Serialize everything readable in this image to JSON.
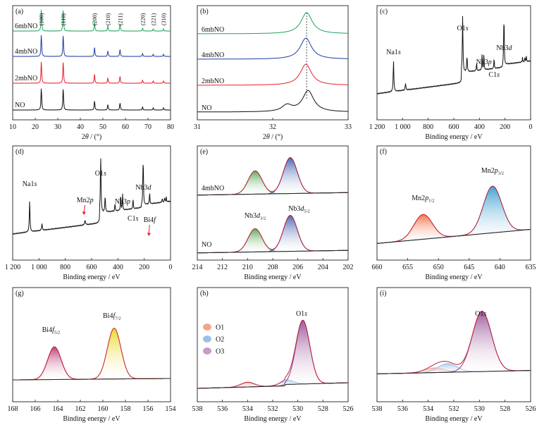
{
  "figure": {
    "panels": [
      {
        "id": "a",
        "panel_label": "(a)",
        "type": "line",
        "x_ticks": [
          "10",
          "20",
          "30",
          "40",
          "50",
          "60",
          "70",
          "80"
        ],
        "xlim": [
          10,
          80
        ],
        "xlabel": "2θ / (°)",
        "peak_labels": [
          {
            "text": "(100)",
            "x": 22.7
          },
          {
            "text": "(110)",
            "x": 32.4
          },
          {
            "text": "(200)",
            "x": 46.3
          },
          {
            "text": "(210)",
            "x": 52.2
          },
          {
            "text": "(211)",
            "x": 57.6
          },
          {
            "text": "(220)",
            "x": 67.6
          },
          {
            "text": "(221)",
            "x": 72.3
          },
          {
            "text": "(310)",
            "x": 76.9
          }
        ],
        "series": [
          {
            "name": "NO",
            "color": "#111111"
          },
          {
            "name": "2mbNO",
            "color": "#e8202a"
          },
          {
            "name": "4mbNO",
            "color": "#1e3ea8"
          },
          {
            "name": "6mbNO",
            "color": "#1fa35c"
          }
        ],
        "peaks": [
          [
            22.7,
            1.0
          ],
          [
            32.4,
            1.0
          ],
          [
            46.3,
            0.42
          ],
          [
            52.2,
            0.25
          ],
          [
            57.6,
            0.33
          ],
          [
            67.6,
            0.14
          ],
          [
            72.3,
            0.1
          ],
          [
            76.9,
            0.1
          ]
        ]
      },
      {
        "id": "b",
        "panel_label": "(b)",
        "type": "line",
        "x_ticks": [
          "31",
          "32",
          "33"
        ],
        "xlim": [
          31,
          33
        ],
        "xlabel": "2θ / (°)",
        "reference_line_x": 32.45,
        "series": [
          {
            "name": "NO",
            "color": "#111111",
            "center": 32.47
          },
          {
            "name": "2mbNO",
            "color": "#e8202a",
            "center": 32.44
          },
          {
            "name": "4mbNO",
            "color": "#1e3ea8",
            "center": 32.44
          },
          {
            "name": "6mbNO",
            "color": "#1fa35c",
            "center": 32.45
          }
        ]
      },
      {
        "id": "c",
        "panel_label": "(c)",
        "type": "line",
        "x_ticks": [
          "1 200",
          "1 000",
          "800",
          "600",
          "400",
          "200",
          "0"
        ],
        "xlim": [
          1200,
          0
        ],
        "xlabel": "Binding energy / eV",
        "reversed": true,
        "annotations": [
          {
            "main": "Na1",
            "italic": "s",
            "x": 1071
          },
          {
            "main": "O1",
            "italic": "s",
            "x": 531
          },
          {
            "main": "Nb3",
            "italic": "p",
            "x": 365
          },
          {
            "main": "C1",
            "italic": "s",
            "x": 285
          },
          {
            "main": "Nb3",
            "italic": "d",
            "x": 207
          }
        ]
      },
      {
        "id": "d",
        "panel_label": "(d)",
        "type": "line",
        "x_ticks": [
          "1 200",
          "1 000",
          "800",
          "600",
          "400",
          "200",
          "0"
        ],
        "xlim": [
          1200,
          0
        ],
        "xlabel": "Binding energy / eV",
        "reversed": true,
        "annotations": [
          {
            "main": "Na1",
            "italic": "s",
            "x": 1071
          },
          {
            "main": "Mn2",
            "italic": "p",
            "x": 650
          },
          {
            "main": "O1",
            "italic": "s",
            "x": 531
          },
          {
            "main": "Nb3",
            "italic": "p",
            "x": 365
          },
          {
            "main": "C1",
            "italic": "s",
            "x": 285
          },
          {
            "main": "Nb3",
            "italic": "d",
            "x": 207
          },
          {
            "main": "Bi4",
            "italic": "f",
            "x": 159
          }
        ]
      },
      {
        "id": "e",
        "panel_label": "(e)",
        "type": "area",
        "x_ticks": [
          "214",
          "212",
          "210",
          "208",
          "206",
          "204",
          "202"
        ],
        "xlim": [
          214,
          202
        ],
        "xlabel": "Binding energy / eV",
        "reversed": true,
        "samples": [
          "4mbNO",
          "NO"
        ],
        "peak_labels": [
          {
            "main": "Nb3",
            "italic": "d",
            "sub": "3/2"
          },
          {
            "main": "Nb3",
            "italic": "d",
            "sub": "5/2"
          }
        ],
        "components": [
          {
            "center": 209.4,
            "height": 0.55,
            "color": "#3c9a3c"
          },
          {
            "center": 206.6,
            "height": 0.85,
            "color": "#2c4ea8"
          }
        ]
      },
      {
        "id": "f",
        "panel_label": "(f)",
        "type": "area",
        "x_ticks": [
          "660",
          "655",
          "650",
          "645",
          "640",
          "635"
        ],
        "xlim": [
          660,
          635
        ],
        "xlabel": "Binding energy / eV",
        "reversed": true,
        "peak_labels": [
          {
            "main": "Mn2",
            "italic": "p",
            "sub": "1/2"
          },
          {
            "main": "Mn2",
            "italic": "p",
            "sub": "3/2"
          }
        ],
        "components": [
          {
            "center": 652.5,
            "height": 0.45,
            "color": "#ef5a2a"
          },
          {
            "center": 641.2,
            "height": 0.85,
            "color": "#1e8fc8"
          }
        ]
      },
      {
        "id": "g",
        "panel_label": "(g)",
        "type": "area",
        "x_ticks": [
          "168",
          "166",
          "164",
          "162",
          "160",
          "158",
          "156",
          "154"
        ],
        "xlim": [
          168,
          154
        ],
        "xlabel": "Binding energy / eV",
        "reversed": true,
        "peak_labels": [
          {
            "main": "Bi4",
            "italic": "f",
            "sub": "5/2"
          },
          {
            "main": "Bi4",
            "italic": "f",
            "sub": "7/2"
          }
        ],
        "components": [
          {
            "center": 164.3,
            "height": 0.58,
            "color": "#b0205e"
          },
          {
            "center": 159.0,
            "height": 0.9,
            "color": "#e8d000"
          }
        ]
      },
      {
        "id": "h",
        "panel_label": "(h)",
        "type": "area",
        "x_ticks": [
          "538",
          "536",
          "534",
          "532",
          "530",
          "528",
          "526"
        ],
        "xlim": [
          538,
          526
        ],
        "xlabel": "Binding energy / eV",
        "reversed": true,
        "main_label": {
          "main": "O1",
          "italic": "s"
        },
        "legend": [
          {
            "name": "O1",
            "color": "#f4a58a"
          },
          {
            "name": "O2",
            "color": "#9ec0e6"
          },
          {
            "name": "O3",
            "color": "#c79ac8"
          }
        ],
        "components": [
          {
            "center": 534.0,
            "height": 0.07,
            "color": "#f4a58a"
          },
          {
            "center": 530.9,
            "height": 0.07,
            "color": "#9ec0e6"
          },
          {
            "center": 529.6,
            "height": 0.95,
            "color": "#8a3e8c"
          }
        ]
      },
      {
        "id": "i",
        "panel_label": "(i)",
        "type": "area",
        "x_ticks": [
          "538",
          "536",
          "534",
          "532",
          "530",
          "528",
          "526"
        ],
        "xlim": [
          538,
          526
        ],
        "xlabel": "Binding energy / eV",
        "reversed": true,
        "main_label": {
          "main": "O1",
          "italic": "s"
        },
        "components": [
          {
            "center": 533.5,
            "height": 0.07,
            "color": "#f4a58a"
          },
          {
            "center": 532.5,
            "height": 0.13,
            "color": "#9ec0e6"
          },
          {
            "center": 529.8,
            "height": 0.9,
            "color": "#8a3e8c"
          }
        ]
      }
    ]
  },
  "chart_data": [
    {
      "type": "line",
      "panel": "(a)",
      "xlabel": "2θ / (°)",
      "xlim": [
        10,
        80
      ],
      "series": [
        {
          "name": "NO"
        },
        {
          "name": "2mbNO"
        },
        {
          "name": "4mbNO"
        },
        {
          "name": "6mbNO"
        }
      ],
      "peaks_2theta": [
        22.7,
        32.4,
        46.3,
        52.2,
        57.6,
        67.6,
        72.3,
        76.9
      ],
      "peak_labels": [
        "(100)",
        "(110)",
        "(200)",
        "(210)",
        "(211)",
        "(220)",
        "(221)",
        "(310)"
      ]
    },
    {
      "type": "line",
      "panel": "(b)",
      "xlabel": "2θ / (°)",
      "xlim": [
        31,
        33
      ],
      "series": [
        {
          "name": "NO",
          "peak": 32.47
        },
        {
          "name": "2mbNO",
          "peak": 32.44
        },
        {
          "name": "4mbNO",
          "peak": 32.44
        },
        {
          "name": "6mbNO",
          "peak": 32.45
        }
      ]
    },
    {
      "type": "line",
      "panel": "(c)",
      "xlabel": "Binding energy / eV",
      "xlim": [
        1200,
        0
      ],
      "annotations": [
        "Na1s",
        "O1s",
        "Nb3p",
        "C1s",
        "Nb3d"
      ]
    },
    {
      "type": "line",
      "panel": "(d)",
      "xlabel": "Binding energy / eV",
      "xlim": [
        1200,
        0
      ],
      "annotations": [
        "Na1s",
        "Mn2p",
        "O1s",
        "Nb3p",
        "C1s",
        "Nb3d",
        "Bi4f"
      ]
    },
    {
      "type": "area",
      "panel": "(e)",
      "xlabel": "Binding energy / eV",
      "xlim": [
        214,
        202
      ],
      "peaks": [
        {
          "label": "Nb3d3/2",
          "x": 209.4
        },
        {
          "label": "Nb3d5/2",
          "x": 206.6
        }
      ]
    },
    {
      "type": "area",
      "panel": "(f)",
      "xlabel": "Binding energy / eV",
      "xlim": [
        660,
        635
      ],
      "peaks": [
        {
          "label": "Mn2p1/2",
          "x": 652.5
        },
        {
          "label": "Mn2p3/2",
          "x": 641.2
        }
      ]
    },
    {
      "type": "area",
      "panel": "(g)",
      "xlabel": "Binding energy / eV",
      "xlim": [
        168,
        154
      ],
      "peaks": [
        {
          "label": "Bi4f5/2",
          "x": 164.3
        },
        {
          "label": "Bi4f7/2",
          "x": 159.0
        }
      ]
    },
    {
      "type": "area",
      "panel": "(h)",
      "xlabel": "Binding energy / eV",
      "xlim": [
        538,
        526
      ],
      "peaks": [
        {
          "label": "O1",
          "x": 534.0
        },
        {
          "label": "O2",
          "x": 530.9
        },
        {
          "label": "O3",
          "x": 529.6
        }
      ]
    },
    {
      "type": "area",
      "panel": "(i)",
      "xlabel": "Binding energy / eV",
      "xlim": [
        538,
        526
      ],
      "peaks": [
        {
          "label": "O1",
          "x": 533.5
        },
        {
          "label": "O2",
          "x": 532.5
        },
        {
          "label": "O3",
          "x": 529.8
        }
      ]
    }
  ]
}
